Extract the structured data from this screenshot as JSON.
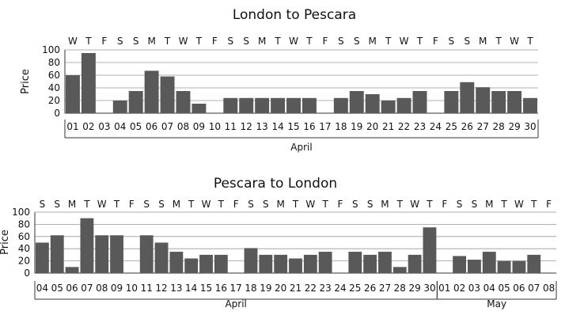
{
  "chart_data": [
    {
      "type": "bar",
      "title": "London to Pescara",
      "ylabel": "Price",
      "xlabel": "April",
      "ylim": [
        0,
        100
      ],
      "yticks": [
        0,
        20,
        40,
        60,
        80,
        100
      ],
      "grid": true,
      "categories": [
        "01",
        "02",
        "03",
        "04",
        "05",
        "06",
        "07",
        "08",
        "09",
        "10",
        "11",
        "12",
        "13",
        "14",
        "15",
        "16",
        "17",
        "18",
        "19",
        "20",
        "21",
        "22",
        "23",
        "24",
        "25",
        "26",
        "27",
        "28",
        "29",
        "30"
      ],
      "days_of_week": [
        "W",
        "T",
        "F",
        "S",
        "S",
        "M",
        "T",
        "W",
        "T",
        "F",
        "S",
        "S",
        "M",
        "T",
        "W",
        "T",
        "F",
        "S",
        "S",
        "M",
        "T",
        "W",
        "T",
        "F",
        "S",
        "S",
        "M",
        "T",
        "W",
        "T"
      ],
      "values": [
        60,
        95,
        0,
        20,
        35,
        67,
        58,
        35,
        15,
        0,
        24,
        24,
        24,
        24,
        24,
        24,
        0,
        24,
        35,
        30,
        20,
        24,
        35,
        0,
        35,
        49,
        41,
        35,
        35,
        24
      ],
      "month_groups": [
        {
          "label": "April",
          "count": 30
        }
      ]
    },
    {
      "type": "bar",
      "title": "Pescara to London",
      "ylabel": "Price",
      "ylim": [
        0,
        100
      ],
      "yticks": [
        0,
        20,
        40,
        60,
        80,
        100
      ],
      "grid": true,
      "categories": [
        "04",
        "05",
        "06",
        "07",
        "08",
        "09",
        "10",
        "11",
        "12",
        "13",
        "14",
        "15",
        "16",
        "17",
        "18",
        "19",
        "20",
        "21",
        "22",
        "23",
        "24",
        "25",
        "26",
        "27",
        "28",
        "29",
        "30",
        "01",
        "02",
        "03",
        "04",
        "05",
        "06",
        "07",
        "08"
      ],
      "days_of_week": [
        "S",
        "S",
        "M",
        "T",
        "W",
        "T",
        "F",
        "S",
        "S",
        "M",
        "T",
        "W",
        "T",
        "F",
        "S",
        "S",
        "M",
        "T",
        "W",
        "T",
        "F",
        "S",
        "S",
        "M",
        "T",
        "W",
        "T",
        "F",
        "S",
        "S",
        "M",
        "T",
        "W",
        "T",
        "F"
      ],
      "values": [
        50,
        62,
        10,
        90,
        62,
        62,
        0,
        62,
        50,
        35,
        24,
        30,
        30,
        0,
        41,
        30,
        30,
        24,
        30,
        35,
        0,
        35,
        30,
        35,
        10,
        30,
        75,
        0,
        28,
        22,
        35,
        20,
        20,
        30,
        0
      ],
      "month_groups": [
        {
          "label": "April",
          "count": 27
        },
        {
          "label": "May",
          "count": 8
        }
      ]
    }
  ]
}
